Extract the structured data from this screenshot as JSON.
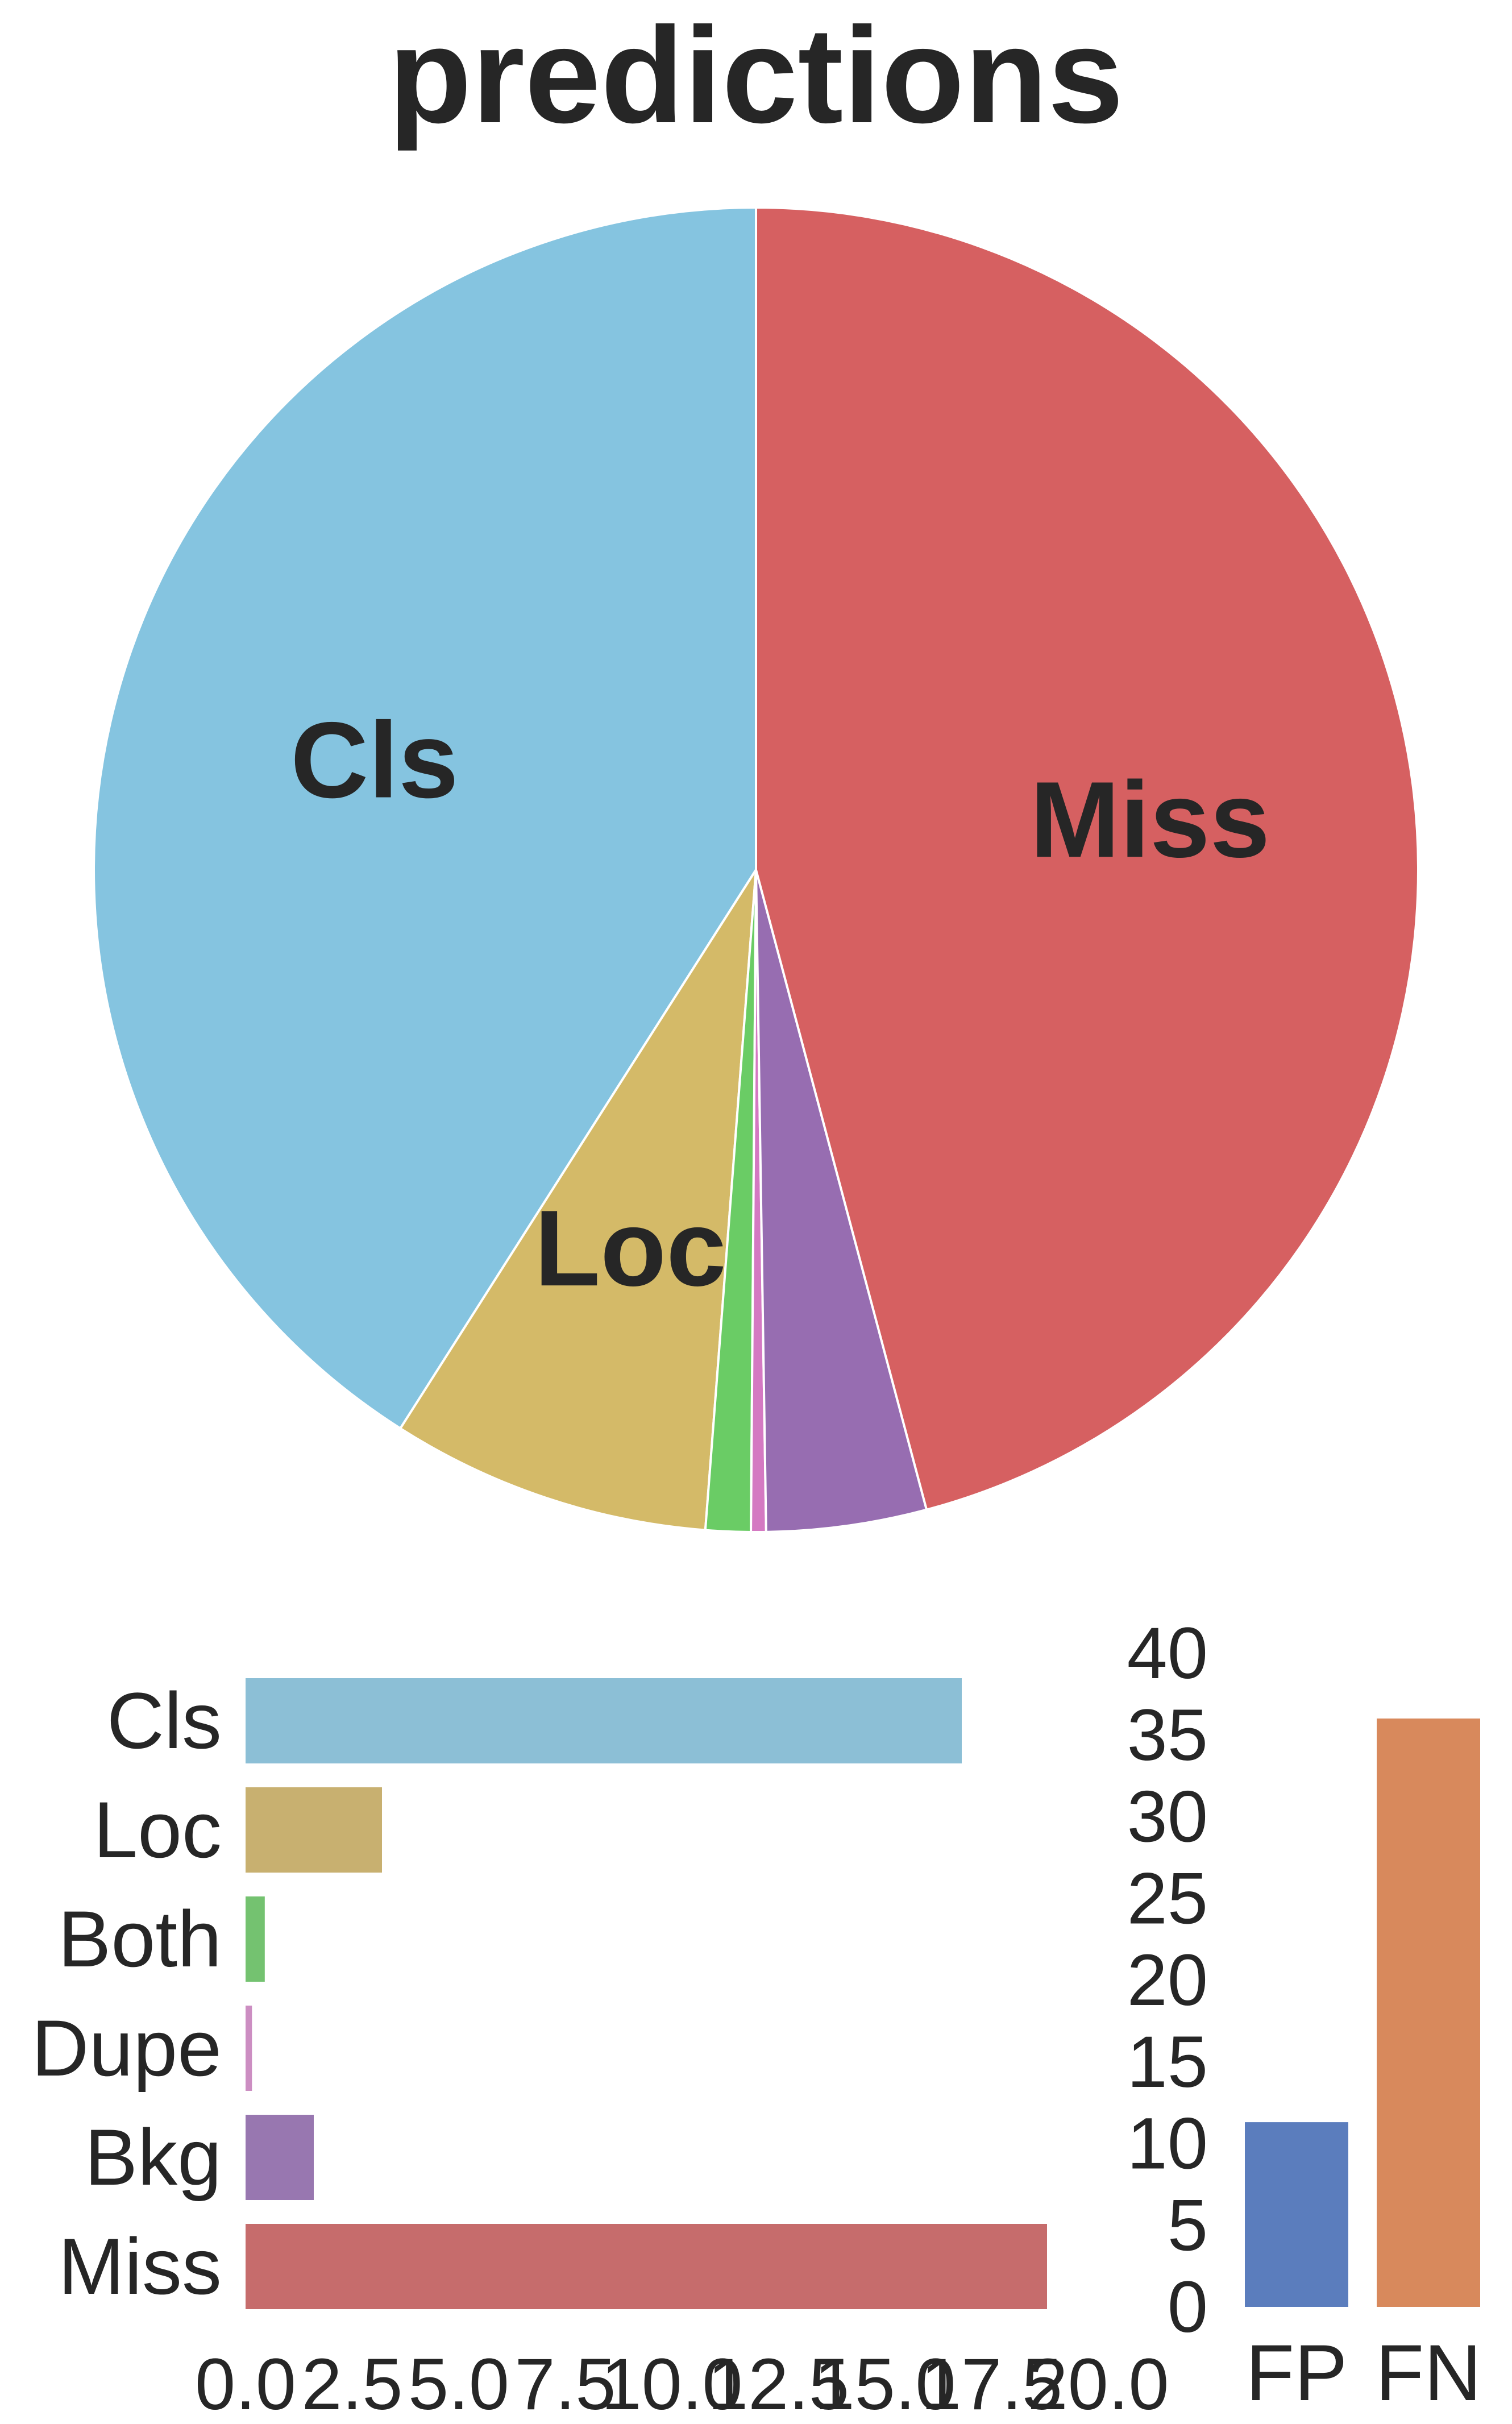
{
  "chart_data": [
    {
      "type": "pie",
      "title": "predictions",
      "slices": [
        {
          "label": "Cls",
          "value": 16.8,
          "color": "#85c4e0",
          "show_label": true
        },
        {
          "label": "Loc",
          "value": 3.2,
          "color": "#d4ba68",
          "show_label": true
        },
        {
          "label": "Both",
          "value": 0.45,
          "color": "#6acc65",
          "show_label": false
        },
        {
          "label": "Dupe",
          "value": 0.15,
          "color": "#d479c2",
          "show_label": false
        },
        {
          "label": "Bkg",
          "value": 1.6,
          "color": "#976db1",
          "show_label": false
        },
        {
          "label": "Miss",
          "value": 18.8,
          "color": "#d66061",
          "show_label": true
        }
      ],
      "start": "top",
      "direction": "counterclockwise"
    },
    {
      "type": "bar",
      "orientation": "horizontal",
      "categories": [
        "Cls",
        "Loc",
        "Both",
        "Dupe",
        "Bkg",
        "Miss"
      ],
      "values": [
        16.8,
        3.2,
        0.45,
        0.15,
        1.6,
        18.8
      ],
      "colors": [
        "#8cbfd6",
        "#c8b070",
        "#74c270",
        "#cc8ec2",
        "#9877b0",
        "#c66c6c"
      ],
      "xlim": [
        0,
        20
      ],
      "xticks": [
        "0.0",
        "2.5",
        "5.0",
        "7.5",
        "10.0",
        "12.5",
        "15.0",
        "17.5",
        "20.0"
      ]
    },
    {
      "type": "bar",
      "categories": [
        "FP",
        "FN"
      ],
      "values": [
        11.3,
        36.0
      ],
      "colors": [
        "#5b7dbd",
        "#d8895c"
      ],
      "ylim": [
        0,
        40
      ],
      "yticks": [
        "0",
        "5",
        "10",
        "15",
        "20",
        "25",
        "30",
        "35",
        "40"
      ]
    }
  ]
}
